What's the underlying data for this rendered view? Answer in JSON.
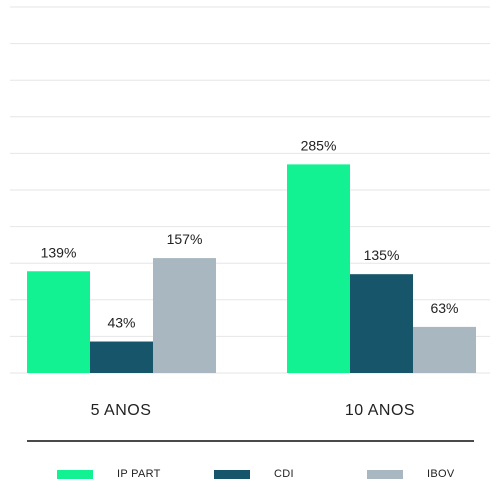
{
  "chart_data": {
    "type": "bar",
    "categories": [
      "5 ANOS",
      "10 ANOS"
    ],
    "series": [
      {
        "name": "IP PART",
        "values": [
          139,
          285
        ],
        "labels": [
          "139%",
          "285%"
        ],
        "color": "#12f293"
      },
      {
        "name": "CDI",
        "values": [
          43,
          135
        ],
        "labels": [
          "43%",
          "135%"
        ],
        "color": "#17566a"
      },
      {
        "name": "IBOV",
        "values": [
          157,
          63
        ],
        "labels": [
          "157%",
          "63%"
        ],
        "color": "#a8b7c0"
      }
    ],
    "ylim": [
      0,
      500
    ],
    "grid": true,
    "legend_position": "bottom"
  }
}
